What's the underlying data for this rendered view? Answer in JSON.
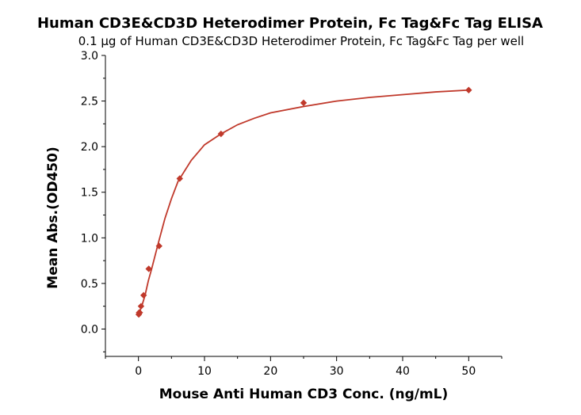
{
  "chart_data": {
    "type": "scatter",
    "title": "Human CD3E&CD3D Heterodimer Protein, Fc Tag&Fc Tag ELISA",
    "subtitle": "0.1 μg of Human CD3E&CD3D Heterodimer Protein, Fc Tag&Fc Tag per well",
    "xlabel": "Mouse Anti Human CD3 Conc. (ng/mL)",
    "ylabel": "Mean Abs.(OD450)",
    "xlim": [
      -5,
      55
    ],
    "ylim": [
      -0.3,
      3.0
    ],
    "xticks": [
      0,
      10,
      20,
      30,
      40,
      50
    ],
    "xtick_labels": [
      "0",
      "10",
      "20",
      "30",
      "40",
      "50"
    ],
    "yticks": [
      0.0,
      0.5,
      1.0,
      1.5,
      2.0,
      2.5,
      3.0
    ],
    "ytick_labels": [
      "0.0",
      "0.5",
      "1.0",
      "1.5",
      "2.0",
      "2.5",
      "3.0"
    ],
    "grid": false,
    "marker_color": "#c0392b",
    "fit_line_color": "#c0392b",
    "series": [
      {
        "x": [
          0.05,
          0.1,
          0.2,
          0.39,
          0.78,
          1.56,
          3.13,
          6.25,
          12.5,
          25,
          50
        ],
        "y": [
          0.16,
          0.18,
          0.18,
          0.25,
          0.37,
          0.66,
          0.91,
          1.65,
          2.14,
          2.48,
          2.62
        ]
      }
    ],
    "fit_curve": {
      "x": [
        0,
        0.5,
        1,
        1.5,
        2,
        3,
        4,
        5,
        6,
        8,
        10,
        12.5,
        15,
        17.5,
        20,
        25,
        30,
        35,
        40,
        45,
        50
      ],
      "y": [
        0.16,
        0.25,
        0.37,
        0.53,
        0.66,
        0.94,
        1.21,
        1.43,
        1.62,
        1.85,
        2.02,
        2.14,
        2.24,
        2.31,
        2.37,
        2.44,
        2.5,
        2.54,
        2.57,
        2.6,
        2.62
      ]
    }
  }
}
